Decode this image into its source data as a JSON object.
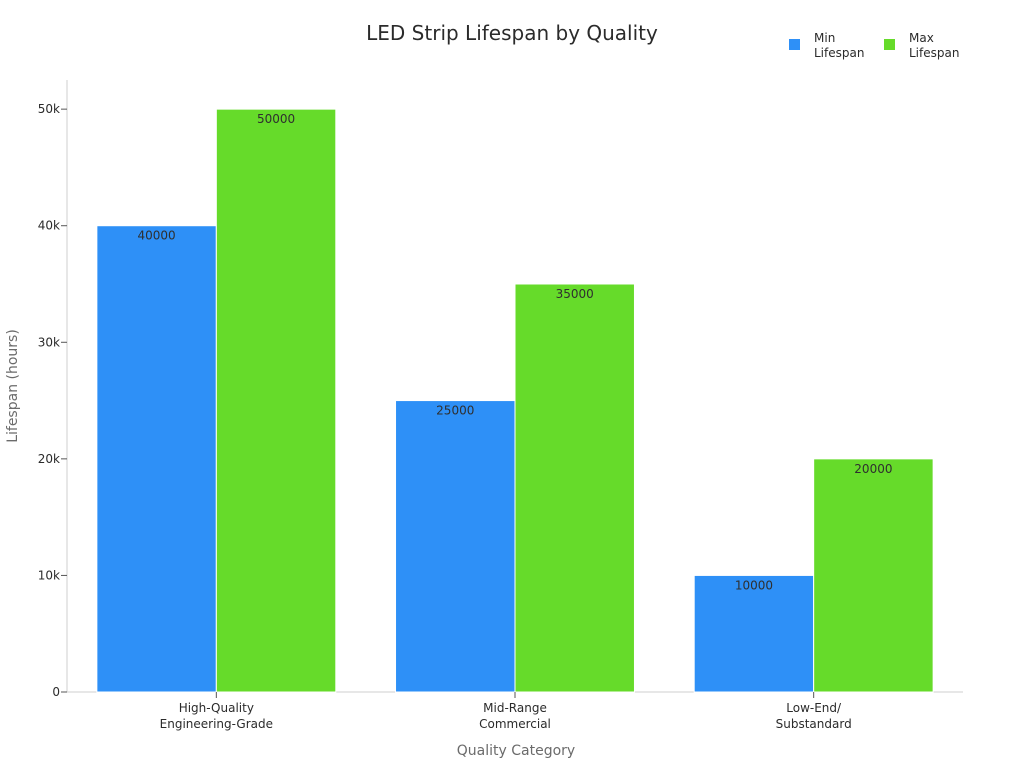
{
  "chart_data": {
    "type": "bar",
    "title": "LED Strip Lifespan by Quality",
    "xlabel": "Quality Category",
    "ylabel": "Lifespan (hours)",
    "categories": [
      [
        "High-Quality",
        "Engineering-Grade"
      ],
      [
        "Mid-Range",
        "Commercial"
      ],
      [
        "Low-End/",
        "Substandard"
      ]
    ],
    "series": [
      {
        "name": [
          "Min",
          "Lifespan"
        ],
        "values": [
          40000,
          25000,
          10000
        ],
        "color": "#2e90f7"
      },
      {
        "name": [
          "Max",
          "Lifespan"
        ],
        "values": [
          50000,
          35000,
          20000
        ],
        "color": "#66db2a"
      }
    ],
    "ylim": [
      0,
      52500
    ],
    "yticks": [
      0,
      10000,
      20000,
      30000,
      40000,
      50000
    ],
    "ytick_labels": [
      "0",
      "10k",
      "20k",
      "30k",
      "40k",
      "50k"
    ],
    "legend_position": "top-right",
    "grid": false
  }
}
